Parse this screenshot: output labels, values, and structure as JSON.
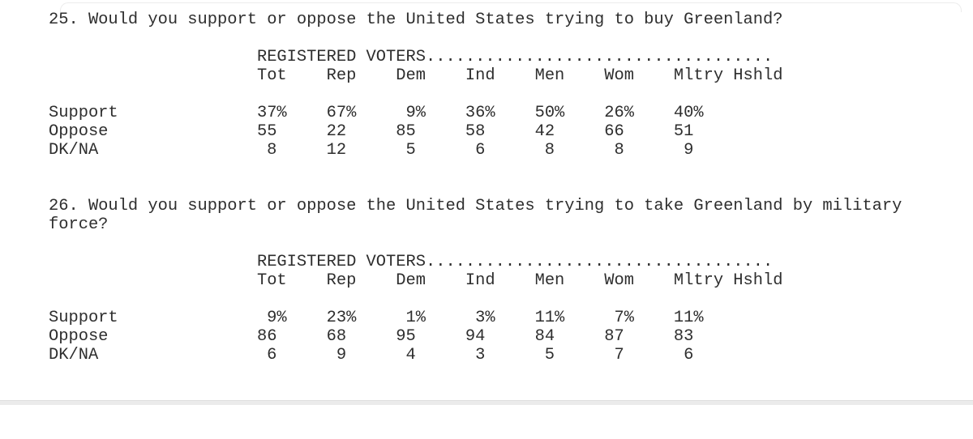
{
  "page": {
    "background": "#ffffff",
    "text_color": "#2e2e2e",
    "bottom_strip_color": "#ebebeb",
    "card_edge_color": "#ececec"
  },
  "questions": [
    {
      "text": "25. Would you support or oppose the United States trying to buy Greenland?",
      "table": {
        "group_header": "REGISTERED VOTERS...................................",
        "columns": [
          "Tot",
          "Rep",
          "Dem",
          "Ind",
          "Men",
          "Wom",
          "Mltry Hshld"
        ],
        "rows": [
          {
            "label": "Support",
            "values": [
              "37%",
              "67%",
              "9%",
              "36%",
              "50%",
              "26%",
              "40%"
            ]
          },
          {
            "label": "Oppose",
            "values": [
              "55",
              "22",
              "85",
              "58",
              "42",
              "66",
              "51"
            ]
          },
          {
            "label": "DK/NA",
            "values": [
              "8",
              "12",
              "5",
              "6",
              "8",
              "8",
              "9"
            ]
          }
        ]
      }
    },
    {
      "text": "26. Would you support or oppose the United States trying to take Greenland by military force?",
      "table": {
        "group_header": "REGISTERED VOTERS...................................",
        "columns": [
          "Tot",
          "Rep",
          "Dem",
          "Ind",
          "Men",
          "Wom",
          "Mltry Hshld"
        ],
        "rows": [
          {
            "label": "Support",
            "values": [
              "9%",
              "23%",
              "1%",
              "3%",
              "11%",
              "7%",
              "11%"
            ]
          },
          {
            "label": "Oppose",
            "values": [
              "86",
              "68",
              "95",
              "94",
              "84",
              "87",
              "83"
            ]
          },
          {
            "label": "DK/NA",
            "values": [
              "6",
              "9",
              "4",
              "3",
              "5",
              "7",
              "6"
            ]
          }
        ]
      }
    }
  ]
}
